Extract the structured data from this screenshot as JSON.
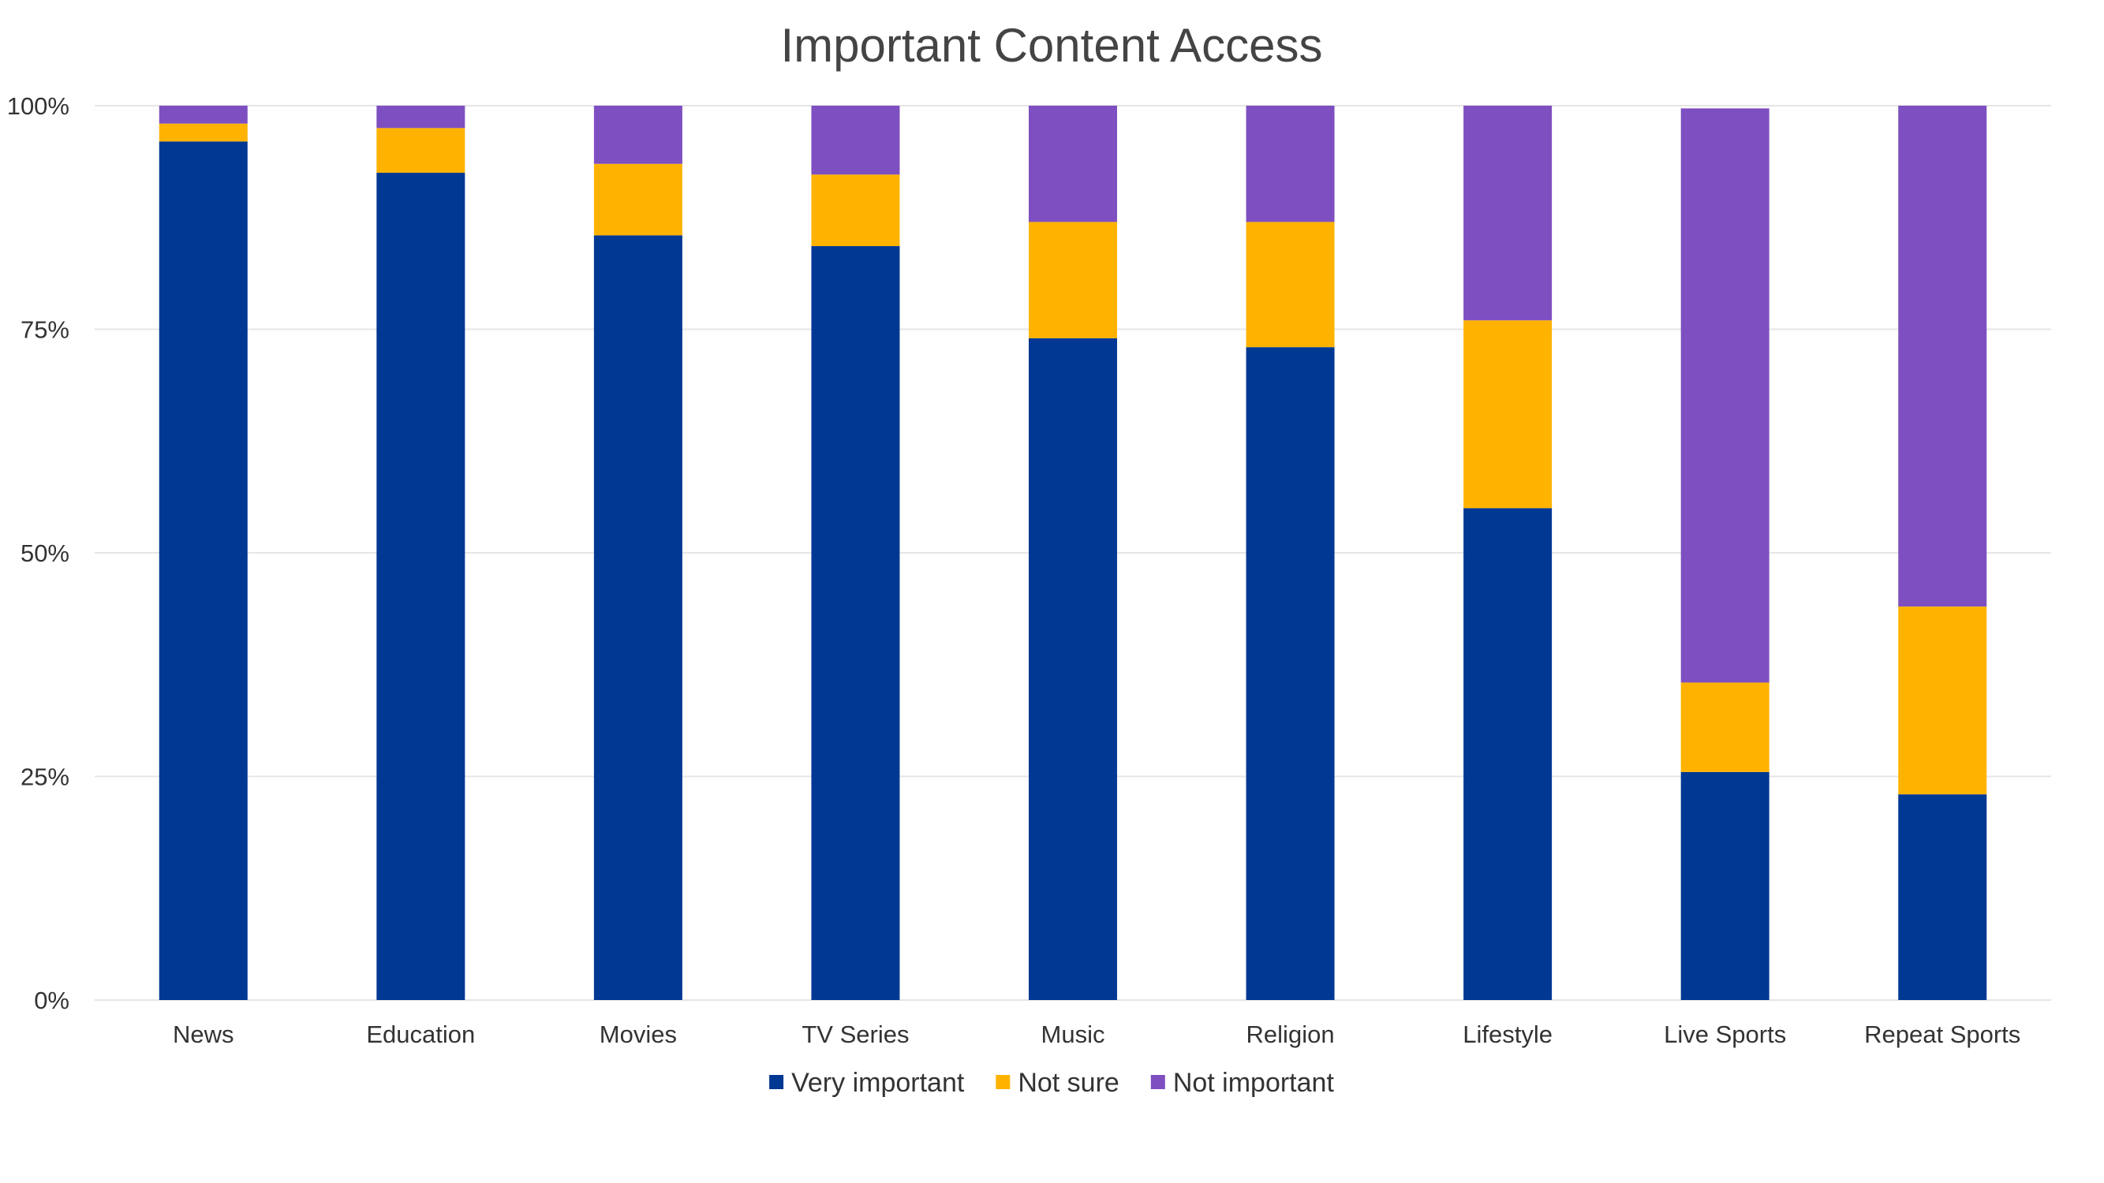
{
  "chart_data": {
    "type": "bar",
    "stacked": true,
    "title": "Important Content Access",
    "xlabel": "",
    "ylabel": "",
    "ylim": [
      0,
      100
    ],
    "y_ticks": [
      0,
      25,
      50,
      75,
      100
    ],
    "y_tick_labels": [
      "0%",
      "25%",
      "50%",
      "75%",
      "100%"
    ],
    "grid": true,
    "legend_position": "bottom",
    "categories": [
      "News",
      "Education",
      "Movies",
      "TV Series",
      "Music",
      "Religion",
      "Lifestyle",
      "Live Sports",
      "Repeat Sports"
    ],
    "series": [
      {
        "name": "Very important",
        "color": "#003893",
        "values": [
          96,
          92.5,
          85.5,
          84.3,
          74,
          73,
          55,
          25.5,
          23
        ]
      },
      {
        "name": "Not sure",
        "color": "#FFB300",
        "values": [
          2,
          5,
          8,
          8,
          13,
          14,
          21,
          10,
          21
        ]
      },
      {
        "name": "Not important",
        "color": "#7E4FC1",
        "values": [
          2,
          2.5,
          6.5,
          7.7,
          13,
          13,
          24,
          64.2,
          56
        ]
      }
    ]
  }
}
